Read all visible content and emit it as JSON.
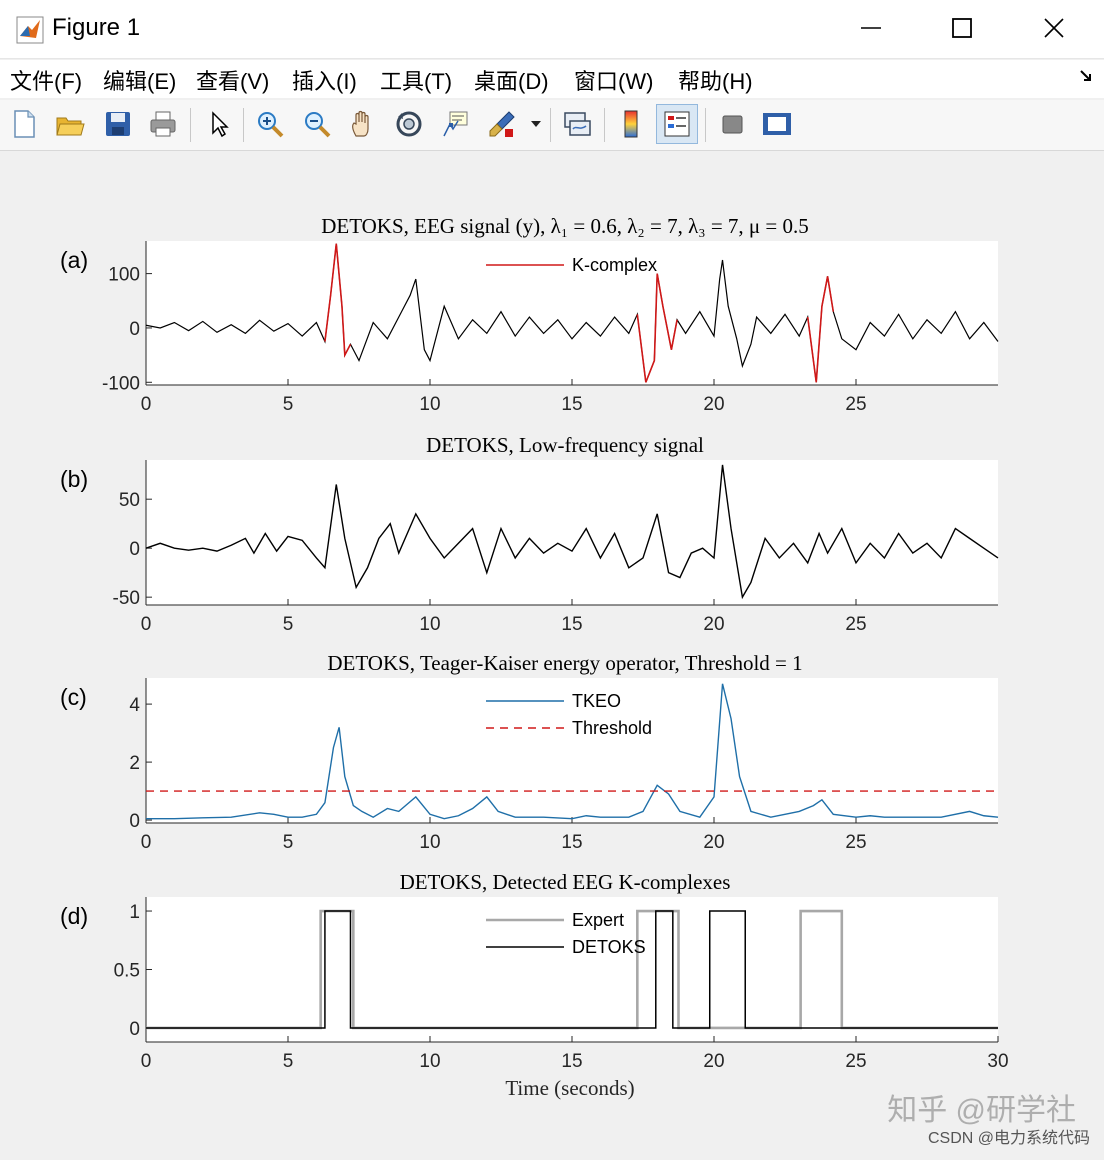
{
  "window": {
    "title": "Figure 1",
    "icon": "matlab-icon",
    "controls": [
      "minimize-icon",
      "maximize-icon",
      "close-icon"
    ]
  },
  "menu": {
    "items": [
      "文件(F)",
      "编辑(E)",
      "查看(V)",
      "插入(I)",
      "工具(T)",
      "桌面(D)",
      "窗口(W)",
      "帮助(H)"
    ]
  },
  "toolbar": {
    "buttons": [
      "new-figure-icon",
      "open-icon",
      "save-icon",
      "print-icon",
      "pointer-icon",
      "zoom-in-icon",
      "zoom-out-icon",
      "pan-icon",
      "rotate-icon",
      "data-cursor-icon",
      "brush-icon",
      "brush-dropdown-icon",
      "link-icon",
      "colorbar-icon",
      "legend-icon",
      "hide-plot-tools-icon",
      "show-plot-tools-icon"
    ],
    "active": "legend-icon"
  },
  "colors": {
    "kcomplex": "#d01818",
    "tkeo": "#1f6fa8",
    "threshold": "#d01818",
    "expert": "#a8a8a8",
    "detoks": "#000000"
  },
  "chart_data": [
    {
      "type": "line",
      "panel_label": "(a)",
      "title": "DETOKS, EEG signal (y), λ₁ = 0.6, λ₂ = 7, λ₃ = 7, μ = 0.5",
      "xlim": [
        0,
        30
      ],
      "ylim": [
        -105,
        160
      ],
      "xticks": [
        0,
        5,
        10,
        15,
        20,
        25
      ],
      "yticks": [
        100,
        0,
        -100
      ],
      "legend": {
        "entries": [
          "K-complex"
        ],
        "placement": "top-center"
      },
      "kcomplex_segments": [
        [
          6.2,
          7.2
        ],
        [
          17.3,
          18.7
        ],
        [
          23.2,
          24.3
        ]
      ],
      "series_points": [
        [
          0,
          5
        ],
        [
          0.5,
          0
        ],
        [
          1,
          10
        ],
        [
          1.5,
          -5
        ],
        [
          2,
          12
        ],
        [
          2.5,
          -8
        ],
        [
          3,
          6
        ],
        [
          3.5,
          -10
        ],
        [
          4,
          14
        ],
        [
          4.5,
          -6
        ],
        [
          5,
          8
        ],
        [
          5.5,
          -15
        ],
        [
          6,
          10
        ],
        [
          6.3,
          -25
        ],
        [
          6.5,
          60
        ],
        [
          6.7,
          155
        ],
        [
          6.9,
          40
        ],
        [
          7.0,
          -50
        ],
        [
          7.2,
          -30
        ],
        [
          7.5,
          -60
        ],
        [
          8,
          10
        ],
        [
          8.5,
          -20
        ],
        [
          9,
          30
        ],
        [
          9.3,
          60
        ],
        [
          9.5,
          90
        ],
        [
          9.8,
          -40
        ],
        [
          10,
          -60
        ],
        [
          10.5,
          40
        ],
        [
          11,
          -20
        ],
        [
          11.5,
          15
        ],
        [
          12,
          -10
        ],
        [
          12.5,
          30
        ],
        [
          13,
          -15
        ],
        [
          13.5,
          20
        ],
        [
          14,
          -10
        ],
        [
          14.5,
          15
        ],
        [
          15,
          -20
        ],
        [
          15.5,
          10
        ],
        [
          16,
          -15
        ],
        [
          16.5,
          20
        ],
        [
          17,
          -10
        ],
        [
          17.3,
          25
        ],
        [
          17.6,
          -100
        ],
        [
          17.9,
          -60
        ],
        [
          18.0,
          100
        ],
        [
          18.2,
          40
        ],
        [
          18.5,
          -40
        ],
        [
          18.7,
          15
        ],
        [
          19,
          -10
        ],
        [
          19.5,
          30
        ],
        [
          20,
          -15
        ],
        [
          20.2,
          90
        ],
        [
          20.3,
          125
        ],
        [
          20.5,
          40
        ],
        [
          20.8,
          -20
        ],
        [
          21,
          -70
        ],
        [
          21.3,
          -30
        ],
        [
          21.5,
          20
        ],
        [
          22,
          -10
        ],
        [
          22.5,
          25
        ],
        [
          23,
          -15
        ],
        [
          23.3,
          20
        ],
        [
          23.6,
          -100
        ],
        [
          23.8,
          40
        ],
        [
          24.0,
          95
        ],
        [
          24.2,
          30
        ],
        [
          24.5,
          -20
        ],
        [
          25,
          -40
        ],
        [
          25.5,
          10
        ],
        [
          26,
          -15
        ],
        [
          26.5,
          25
        ],
        [
          27,
          -20
        ],
        [
          27.5,
          15
        ],
        [
          28,
          -10
        ],
        [
          28.5,
          30
        ],
        [
          29,
          -20
        ],
        [
          29.5,
          10
        ],
        [
          30,
          -25
        ]
      ]
    },
    {
      "type": "line",
      "panel_label": "(b)",
      "title": "DETOKS, Low-frequency signal",
      "xlim": [
        0,
        30
      ],
      "ylim": [
        -58,
        90
      ],
      "xticks": [
        0,
        5,
        10,
        15,
        20,
        25
      ],
      "yticks": [
        50,
        0,
        -50
      ],
      "series_points": [
        [
          0,
          0
        ],
        [
          0.5,
          5
        ],
        [
          1,
          0
        ],
        [
          1.5,
          -2
        ],
        [
          2,
          0
        ],
        [
          2.5,
          -3
        ],
        [
          3,
          3
        ],
        [
          3.5,
          10
        ],
        [
          3.8,
          -5
        ],
        [
          4.2,
          15
        ],
        [
          4.6,
          -3
        ],
        [
          5,
          12
        ],
        [
          5.5,
          8
        ],
        [
          6,
          -10
        ],
        [
          6.3,
          -20
        ],
        [
          6.7,
          65
        ],
        [
          7.0,
          10
        ],
        [
          7.4,
          -40
        ],
        [
          7.8,
          -20
        ],
        [
          8.2,
          10
        ],
        [
          8.6,
          25
        ],
        [
          8.9,
          -5
        ],
        [
          9.5,
          35
        ],
        [
          10,
          10
        ],
        [
          10.5,
          -10
        ],
        [
          11,
          5
        ],
        [
          11.5,
          20
        ],
        [
          12,
          -25
        ],
        [
          12.5,
          20
        ],
        [
          13,
          -10
        ],
        [
          13.5,
          10
        ],
        [
          14,
          -5
        ],
        [
          14.5,
          5
        ],
        [
          15,
          -3
        ],
        [
          15.5,
          20
        ],
        [
          16,
          -10
        ],
        [
          16.5,
          15
        ],
        [
          17,
          -20
        ],
        [
          17.5,
          -10
        ],
        [
          18.0,
          35
        ],
        [
          18.4,
          -25
        ],
        [
          18.8,
          -30
        ],
        [
          19.2,
          -5
        ],
        [
          19.6,
          0
        ],
        [
          20,
          -10
        ],
        [
          20.3,
          85
        ],
        [
          20.6,
          20
        ],
        [
          21,
          -50
        ],
        [
          21.3,
          -35
        ],
        [
          21.8,
          10
        ],
        [
          22.3,
          -10
        ],
        [
          22.8,
          5
        ],
        [
          23.3,
          -15
        ],
        [
          23.7,
          15
        ],
        [
          24.0,
          -5
        ],
        [
          24.5,
          20
        ],
        [
          25,
          -15
        ],
        [
          25.5,
          5
        ],
        [
          26,
          -10
        ],
        [
          26.5,
          15
        ],
        [
          27,
          -5
        ],
        [
          27.5,
          5
        ],
        [
          28,
          -10
        ],
        [
          28.5,
          20
        ],
        [
          29,
          10
        ],
        [
          29.5,
          0
        ],
        [
          30,
          -10
        ]
      ]
    },
    {
      "type": "line",
      "panel_label": "(c)",
      "title": "DETOKS, Teager-Kaiser energy operator, Threshold = 1",
      "xlim": [
        0,
        30
      ],
      "ylim": [
        -0.1,
        4.9
      ],
      "xticks": [
        0,
        5,
        10,
        15,
        20,
        25
      ],
      "yticks": [
        4,
        2,
        0
      ],
      "threshold": 1,
      "legend": {
        "entries": [
          "TKEO",
          "Threshold"
        ],
        "placement": "top-center"
      },
      "series_points": [
        [
          0,
          0.05
        ],
        [
          1,
          0.05
        ],
        [
          2,
          0.08
        ],
        [
          3,
          0.1
        ],
        [
          4,
          0.25
        ],
        [
          4.5,
          0.2
        ],
        [
          5,
          0.1
        ],
        [
          5.5,
          0.1
        ],
        [
          6,
          0.2
        ],
        [
          6.3,
          0.6
        ],
        [
          6.6,
          2.5
        ],
        [
          6.8,
          3.2
        ],
        [
          7.0,
          1.5
        ],
        [
          7.3,
          0.5
        ],
        [
          7.6,
          0.3
        ],
        [
          8,
          0.1
        ],
        [
          8.5,
          0.4
        ],
        [
          8.9,
          0.3
        ],
        [
          9.5,
          0.8
        ],
        [
          10,
          0.2
        ],
        [
          10.5,
          0.05
        ],
        [
          11,
          0.15
        ],
        [
          11.5,
          0.4
        ],
        [
          12,
          0.8
        ],
        [
          12.4,
          0.3
        ],
        [
          13,
          0.1
        ],
        [
          14,
          0.1
        ],
        [
          15,
          0.05
        ],
        [
          15.5,
          0.15
        ],
        [
          16,
          0.1
        ],
        [
          17,
          0.1
        ],
        [
          17.5,
          0.3
        ],
        [
          18,
          1.2
        ],
        [
          18.4,
          0.9
        ],
        [
          18.8,
          0.3
        ],
        [
          19.5,
          0.1
        ],
        [
          20,
          0.8
        ],
        [
          20.3,
          4.7
        ],
        [
          20.6,
          3.5
        ],
        [
          20.9,
          1.5
        ],
        [
          21.3,
          0.3
        ],
        [
          22,
          0.1
        ],
        [
          22.5,
          0.2
        ],
        [
          23,
          0.3
        ],
        [
          23.5,
          0.5
        ],
        [
          23.8,
          0.7
        ],
        [
          24.2,
          0.2
        ],
        [
          25,
          0.1
        ],
        [
          25.5,
          0.15
        ],
        [
          26,
          0.1
        ],
        [
          27,
          0.1
        ],
        [
          28,
          0.1
        ],
        [
          29,
          0.3
        ],
        [
          29.5,
          0.15
        ],
        [
          30,
          0.1
        ]
      ]
    },
    {
      "type": "line",
      "panel_label": "(d)",
      "title": "DETOKS, Detected EEG K-complexes",
      "xlabel": "Time (seconds)",
      "xlim": [
        0,
        30
      ],
      "ylim": [
        -0.12,
        1.12
      ],
      "xticks": [
        0,
        5,
        10,
        15,
        20,
        25,
        30
      ],
      "yticks": [
        1,
        0.5,
        0
      ],
      "legend": {
        "entries": [
          "Expert",
          "DETOKS"
        ],
        "placement": "top-center"
      },
      "series": [
        {
          "name": "Expert",
          "intervals": [
            [
              6.15,
              7.3
            ],
            [
              17.3,
              18.75
            ],
            [
              23.05,
              24.5
            ]
          ]
        },
        {
          "name": "DETOKS",
          "intervals": [
            [
              6.3,
              7.2
            ],
            [
              17.95,
              18.55
            ],
            [
              19.85,
              21.1
            ]
          ]
        }
      ]
    }
  ],
  "watermark": {
    "text": "知乎 @研学社",
    "credit": "CSDN @电力系统代码"
  }
}
